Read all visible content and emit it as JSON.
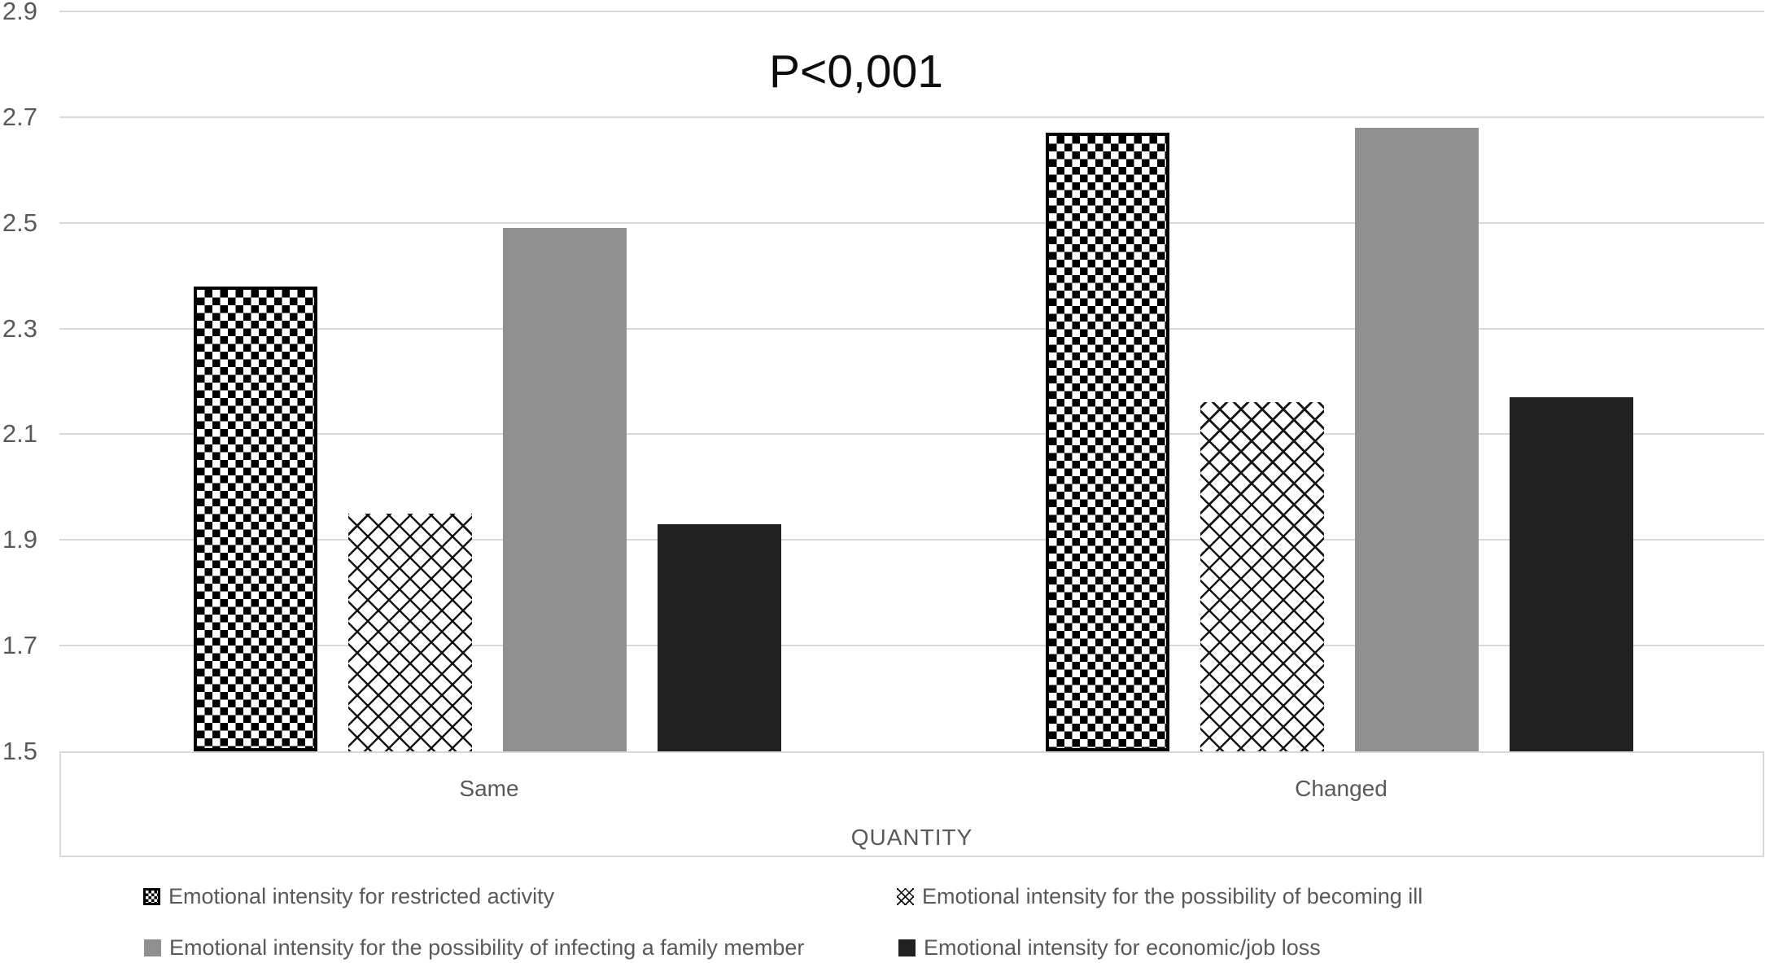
{
  "chart_data": {
    "type": "bar",
    "title": "P<0,001",
    "xlabel": "QUANTITY",
    "categories": [
      "Same",
      "Changed"
    ],
    "ylim": [
      1.5,
      2.9
    ],
    "yticks": [
      1.5,
      1.7,
      1.9,
      2.1,
      2.3,
      2.5,
      2.7,
      2.9
    ],
    "grid": true,
    "legend_position": "bottom, two rows of two entries",
    "series": [
      {
        "name": "Emotional intensity for restricted activity",
        "pattern": "black-white-checkerboard",
        "values": [
          2.38,
          2.67
        ]
      },
      {
        "name": "Emotional intensity for the possibility of becoming ill",
        "pattern": "diagonal-crosshatch",
        "values": [
          1.95,
          2.16
        ]
      },
      {
        "name": "Emotional intensity for the possibility of infecting a family member",
        "pattern": "solid",
        "color": "#8f8f8f",
        "values": [
          2.49,
          2.68
        ]
      },
      {
        "name": "Emotional intensity for economic/job loss",
        "pattern": "solid",
        "color": "#212121",
        "values": [
          1.93,
          2.17
        ]
      }
    ],
    "colors": {
      "gridline": "#d9d9d9",
      "axis_text": "#595959",
      "title_text": "#0d0d0d",
      "gray_series": "#8f8f8f",
      "black_series": "#212121"
    }
  }
}
